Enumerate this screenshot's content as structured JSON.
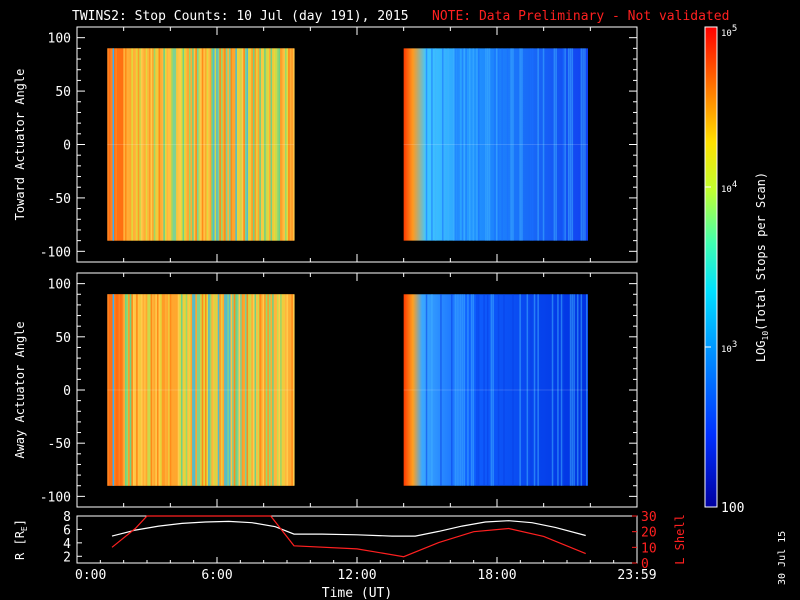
{
  "header": {
    "title": "TWINS2: Stop Counts: 10 Jul (day 191), 2015",
    "note": "NOTE: Data Preliminary - Not validated",
    "note_color": "#ff2020"
  },
  "side_date": "30 Jul 15",
  "chart_data": [
    {
      "type": "heatmap",
      "panel": "toward",
      "ylabel": "Toward Actuator Angle",
      "ylim": [
        -110,
        110
      ],
      "yticks": [
        100,
        50,
        0,
        -50,
        -100
      ],
      "xlim": [
        0,
        24
      ],
      "angle_range": [
        -90,
        90
      ],
      "data_blocks": [
        {
          "t_start": 1.3,
          "t_end": 9.3,
          "level": "high"
        },
        {
          "t_start": 14.0,
          "t_end": 21.9,
          "level": "mixed"
        }
      ]
    },
    {
      "type": "heatmap",
      "panel": "away",
      "ylabel": "Away Actuator Angle",
      "ylim": [
        -110,
        110
      ],
      "yticks": [
        100,
        50,
        0,
        -50,
        -100
      ],
      "xlim": [
        0,
        24
      ],
      "angle_range": [
        -90,
        90
      ],
      "data_blocks": [
        {
          "t_start": 1.3,
          "t_end": 9.3,
          "level": "high"
        },
        {
          "t_start": 14.0,
          "t_end": 21.9,
          "level": "low"
        }
      ]
    },
    {
      "type": "line",
      "panel": "orbit",
      "ylabel_left": "R [R",
      "ylabel_left_sub": "E",
      "ylabel_left_end": "]",
      "ylabel_right": "L Shell",
      "ylim_left": [
        1,
        8
      ],
      "yticks_left": [
        2,
        4,
        6,
        8
      ],
      "ylim_right": [
        0,
        30
      ],
      "yticks_right": [
        0,
        10,
        20,
        30
      ],
      "xlabel": "Time (UT)",
      "xlim": [
        0,
        24
      ],
      "xticks": [
        0,
        6,
        12,
        18,
        24
      ],
      "xtick_labels": [
        "0:00",
        "6:00",
        "12:00",
        "18:00",
        "23:59"
      ],
      "series": [
        {
          "axis": "left",
          "color": "#ffffff",
          "x": [
            1.5,
            2.5,
            3.5,
            4.5,
            5.5,
            6.5,
            7.5,
            8.5,
            9.3,
            10.5,
            12.0,
            13.5,
            14.5,
            15.5,
            16.5,
            17.5,
            18.5,
            19.5,
            20.5,
            21.8
          ],
          "y": [
            5.0,
            5.9,
            6.5,
            6.9,
            7.1,
            7.2,
            7.0,
            6.4,
            5.3,
            5.3,
            5.2,
            5.0,
            5.0,
            5.7,
            6.5,
            7.1,
            7.3,
            7.0,
            6.3,
            5.1
          ]
        },
        {
          "axis": "right",
          "color": "#ff2020",
          "x": [
            1.5,
            2.5,
            3.0,
            8.3,
            9.3,
            12.0,
            14.0,
            15.5,
            17.0,
            18.5,
            20.0,
            21.8
          ],
          "y": [
            10,
            22,
            30,
            30,
            11,
            9,
            4,
            13,
            20,
            22,
            17,
            6
          ]
        }
      ]
    }
  ],
  "colorbar": {
    "label_prefix": "LOG",
    "label_sub": "10",
    "label_suffix": "(Total Stops per Scan)",
    "ticks": [
      {
        "base": "10",
        "exp": "5",
        "value": 100000
      },
      {
        "base": "10",
        "exp": "4",
        "value": 10000
      },
      {
        "base": "10",
        "exp": "3",
        "value": 1000
      },
      {
        "base": "100",
        "exp": "",
        "value": 100
      }
    ],
    "range": [
      100,
      100000
    ]
  }
}
